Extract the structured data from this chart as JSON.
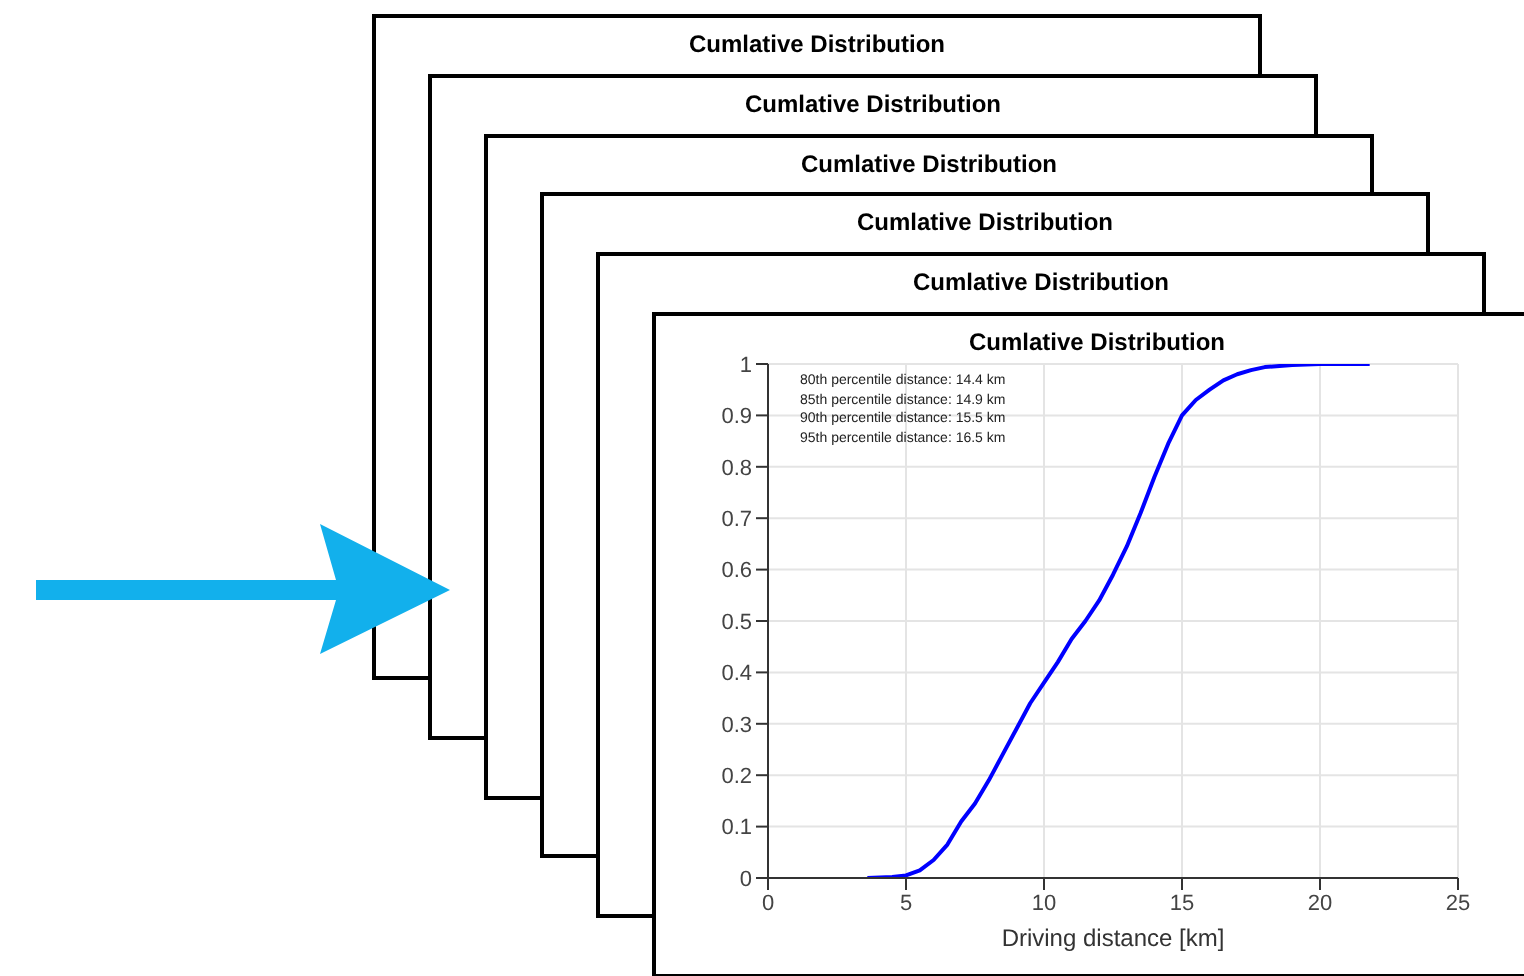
{
  "chart_data": [
    {
      "type": "other",
      "title": "Cumlative Distribution"
    },
    {
      "type": "other",
      "title": "Cumlative Distribution"
    },
    {
      "type": "other",
      "title": "Cumlative Distribution"
    },
    {
      "type": "other",
      "title": "Cumlative Distribution"
    },
    {
      "type": "other",
      "title": "Cumlative Distribution"
    },
    {
      "type": "line",
      "title": "Cumlative Distribution",
      "xlabel": "Driving distance [km]",
      "x": [
        3.6,
        4.5,
        5,
        5.5,
        6,
        6.5,
        7,
        7.5,
        8,
        8.5,
        9,
        9.5,
        10,
        10.5,
        11,
        11.5,
        12,
        12.5,
        13,
        13.5,
        14,
        14.5,
        15,
        15.5,
        16,
        16.5,
        17,
        17.5,
        18,
        19,
        20,
        21.8
      ],
      "series": [
        {
          "color": "#0000ff",
          "values": [
            0,
            0.002,
            0.005,
            0.015,
            0.035,
            0.065,
            0.11,
            0.145,
            0.19,
            0.24,
            0.29,
            0.34,
            0.38,
            0.42,
            0.465,
            0.5,
            0.54,
            0.59,
            0.645,
            0.71,
            0.78,
            0.845,
            0.9,
            0.93,
            0.95,
            0.968,
            0.98,
            0.988,
            0.994,
            0.998,
            1,
            1
          ]
        }
      ],
      "xlim": [
        0,
        25
      ],
      "xticks": [
        0,
        5,
        10,
        15,
        20,
        25
      ],
      "ylim": [
        0,
        1
      ],
      "yticks": [
        0,
        0.1,
        0.2,
        0.3,
        0.4,
        0.5,
        0.6,
        0.7,
        0.8,
        0.9,
        1
      ],
      "grid": true,
      "marker": "none",
      "line_style": "solid",
      "annotations": [
        "80th percentile distance: 14.4 km",
        "85th percentile distance: 14.9 km",
        "90th percentile distance: 15.5 km",
        "95th percentile distance: 16.5 km"
      ]
    }
  ]
}
